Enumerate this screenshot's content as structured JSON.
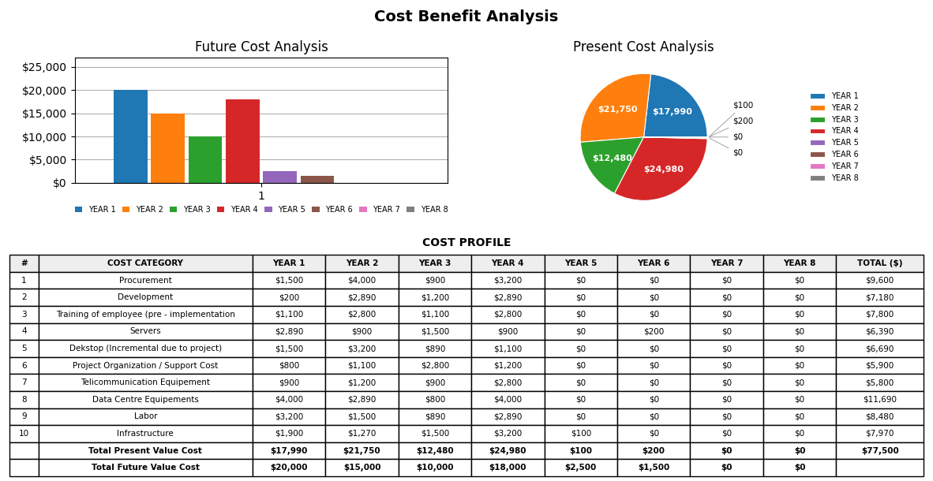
{
  "title": "Cost Benefit Analysis",
  "chart_data": [
    {
      "type": "bar",
      "title": "Future Cost Analysis",
      "categories": [
        "1"
      ],
      "series": [
        {
          "name": "YEAR 1",
          "values": [
            20000
          ]
        },
        {
          "name": "YEAR 2",
          "values": [
            15000
          ]
        },
        {
          "name": "YEAR 3",
          "values": [
            10000
          ]
        },
        {
          "name": "YEAR 4",
          "values": [
            18000
          ]
        },
        {
          "name": "YEAR 5",
          "values": [
            2500
          ]
        },
        {
          "name": "YEAR 6",
          "values": [
            1500
          ]
        },
        {
          "name": "YEAR 7",
          "values": [
            0
          ]
        },
        {
          "name": "YEAR 8",
          "values": [
            0
          ]
        }
      ],
      "ylim": [
        0,
        27000
      ],
      "yticks": [
        {
          "value": 0,
          "label": "$0"
        },
        {
          "value": 5000,
          "label": "$5,000"
        },
        {
          "value": 10000,
          "label": "$10,000"
        },
        {
          "value": 15000,
          "label": "$15,000"
        },
        {
          "value": 20000,
          "label": "$20,000"
        },
        {
          "value": 25000,
          "label": "$25,000"
        }
      ],
      "grid": "y",
      "legend": "lower center"
    },
    {
      "type": "pie",
      "title": "Present Cost Analysis",
      "categories": [
        "YEAR 1",
        "YEAR 2",
        "YEAR 3",
        "YEAR 4",
        "YEAR 5",
        "YEAR 6",
        "YEAR 7",
        "YEAR 8"
      ],
      "values": [
        17990,
        21750,
        12480,
        24980,
        100,
        200,
        0,
        0
      ],
      "value_labels": [
        "$17,990",
        "$21,750",
        "$12,480",
        "$24,980",
        "$100",
        "$200",
        "$0",
        "$0"
      ],
      "data_labels": true,
      "legend": "center left"
    },
    {
      "type": "table",
      "title": "COST PROFILE",
      "columns": [
        "#",
        "COST CATEGORY",
        "YEAR 1",
        "YEAR 2",
        "YEAR 3",
        "YEAR 4",
        "YEAR 5",
        "YEAR 6",
        "YEAR 7",
        "YEAR 8",
        "TOTAL ($)"
      ],
      "rows": [
        [
          "1",
          "Procurement",
          "$1,500",
          "$4,000",
          "$900",
          "$3,200",
          "$0",
          "$0",
          "$0",
          "$0",
          "$9,600"
        ],
        [
          "2",
          "Development",
          "$200",
          "$2,890",
          "$1,200",
          "$2,890",
          "$0",
          "$0",
          "$0",
          "$0",
          "$7,180"
        ],
        [
          "3",
          "Training of employee (pre - implementation",
          "$1,100",
          "$2,800",
          "$1,100",
          "$2,800",
          "$0",
          "$0",
          "$0",
          "$0",
          "$7,800"
        ],
        [
          "4",
          "Servers",
          "$2,890",
          "$900",
          "$1,500",
          "$900",
          "$0",
          "$200",
          "$0",
          "$0",
          "$6,390"
        ],
        [
          "5",
          "Dekstop (Incremental due to project)",
          "$1,500",
          "$3,200",
          "$890",
          "$1,100",
          "$0",
          "$0",
          "$0",
          "$0",
          "$6,690"
        ],
        [
          "6",
          "Project Organization / Support Cost",
          "$800",
          "$1,100",
          "$2,800",
          "$1,200",
          "$0",
          "$0",
          "$0",
          "$0",
          "$5,900"
        ],
        [
          "7",
          "Telicommunication Equipement",
          "$900",
          "$1,200",
          "$900",
          "$2,800",
          "$0",
          "$0",
          "$0",
          "$0",
          "$5,800"
        ],
        [
          "8",
          "Data Centre Equipements",
          "$4,000",
          "$2,890",
          "$800",
          "$4,000",
          "$0",
          "$0",
          "$0",
          "$0",
          "$11,690"
        ],
        [
          "9",
          "Labor",
          "$3,200",
          "$1,500",
          "$890",
          "$2,890",
          "$0",
          "$0",
          "$0",
          "$0",
          "$8,480"
        ],
        [
          "10",
          "Infrastructure",
          "$1,900",
          "$1,270",
          "$1,500",
          "$3,200",
          "$100",
          "$0",
          "$0",
          "$0",
          "$7,970"
        ],
        [
          null,
          "Total Present Value Cost",
          "$17,990",
          "$21,750",
          "$12,480",
          "$24,980",
          "$100",
          "$200",
          "$0",
          "$0",
          "$77,500"
        ],
        [
          null,
          "Total Future Value Cost",
          "$20,000",
          "$15,000",
          "$10,000",
          "$18,000",
          "$2,500",
          "$1,500",
          "$0",
          "$0",
          null
        ]
      ]
    }
  ]
}
